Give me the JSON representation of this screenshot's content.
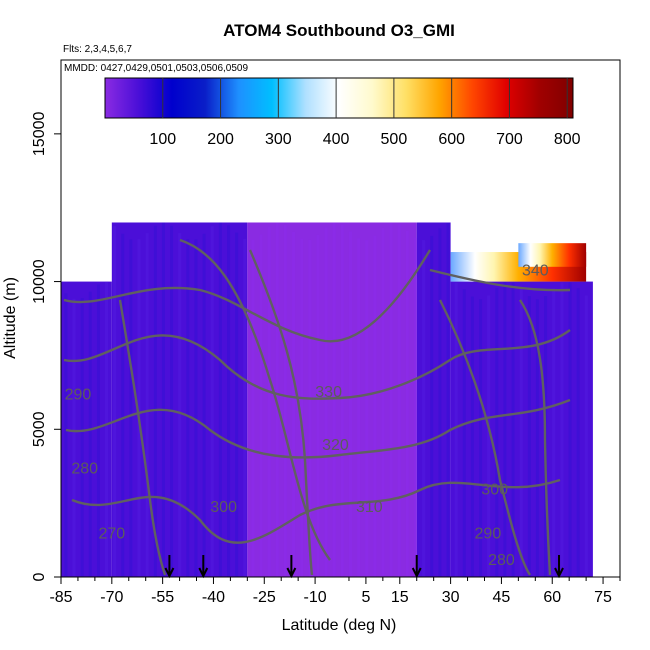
{
  "chart_data": {
    "type": "heatmap",
    "title": "ATOM4 Southbound O3_GMI",
    "subtitle_flights": "Flts: 2,3,4,5,6,7",
    "subtitle_dates": "MMDD: 0427,0429,0501,0503,0506,0509",
    "xlabel": "Latitude (deg N)",
    "ylabel": "Altitude (m)",
    "xlim": [
      -85,
      80
    ],
    "ylim": [
      0,
      17500
    ],
    "x_tick_labels": [
      "-85",
      "-70",
      "-55",
      "-40",
      "-25",
      "-10",
      "5",
      "15",
      "30",
      "45",
      "60",
      "75"
    ],
    "x_tick_values": [
      -85,
      -70,
      -55,
      -40,
      -25,
      -10,
      5,
      15,
      30,
      45,
      60,
      75
    ],
    "x_minor_tick_values": [
      -80,
      -75,
      -65,
      -60,
      -50,
      -45,
      -35,
      -30,
      -20,
      -15,
      0,
      10,
      20,
      25,
      35,
      40,
      50,
      55,
      65,
      70,
      80
    ],
    "y_tick_labels": [
      "0",
      "5000",
      "10000",
      "15000"
    ],
    "y_tick_values": [
      0,
      5000,
      10000,
      15000
    ],
    "colorbar": {
      "min": 0,
      "max": 810,
      "tick_labels": [
        "100",
        "200",
        "300",
        "400",
        "500",
        "600",
        "700",
        "800"
      ],
      "tick_values": [
        100,
        200,
        300,
        400,
        500,
        600,
        700,
        800
      ],
      "colors": [
        "#8a2be2",
        "#4b0fd8",
        "#0000cd",
        "#0a1ec8",
        "#1e90ff",
        "#00bfff",
        "#b0e0ff",
        "#ffffff",
        "#fffacd",
        "#ffe066",
        "#ffa500",
        "#ff4500",
        "#e00000",
        "#a00000",
        "#800000"
      ]
    },
    "field_o3_ppbv": [
      {
        "lat_range": [
          -85,
          -70
        ],
        "alt_range": [
          0,
          10000
        ],
        "value": 55
      },
      {
        "lat_range": [
          -70,
          -30
        ],
        "alt_range": [
          0,
          12000
        ],
        "value": 45
      },
      {
        "lat_range": [
          -30,
          20
        ],
        "alt_range": [
          0,
          12000
        ],
        "value": 25
      },
      {
        "lat_range": [
          20,
          30
        ],
        "alt_range": [
          0,
          12000
        ],
        "value": 60
      },
      {
        "lat_range": [
          30,
          72
        ],
        "alt_range": [
          0,
          10000
        ],
        "value": 70
      },
      {
        "lat_range": [
          30,
          70
        ],
        "alt_range": [
          10000,
          11000
        ],
        "value": 300
      },
      {
        "lat_range": [
          50,
          70
        ],
        "alt_range": [
          10500,
          11300
        ],
        "value": 700
      }
    ],
    "contour_labels": [
      {
        "label": "270",
        "lat": -70,
        "alt": 1300
      },
      {
        "label": "280",
        "lat": -78,
        "alt": 3500
      },
      {
        "label": "290",
        "lat": -80,
        "alt": 6000
      },
      {
        "label": "300",
        "lat": -37,
        "alt": 2200
      },
      {
        "label": "310",
        "lat": 6,
        "alt": 2200
      },
      {
        "label": "320",
        "lat": -4,
        "alt": 4300
      },
      {
        "label": "330",
        "lat": -6,
        "alt": 6100
      },
      {
        "label": "340",
        "lat": 55,
        "alt": 10200
      },
      {
        "label": "300",
        "lat": 43,
        "alt": 2800
      },
      {
        "label": "290",
        "lat": 41,
        "alt": 1300
      },
      {
        "label": "280",
        "lat": 45,
        "alt": 400
      }
    ],
    "flight_marker_latitudes": [
      -53,
      -43,
      -17,
      20,
      62
    ]
  }
}
